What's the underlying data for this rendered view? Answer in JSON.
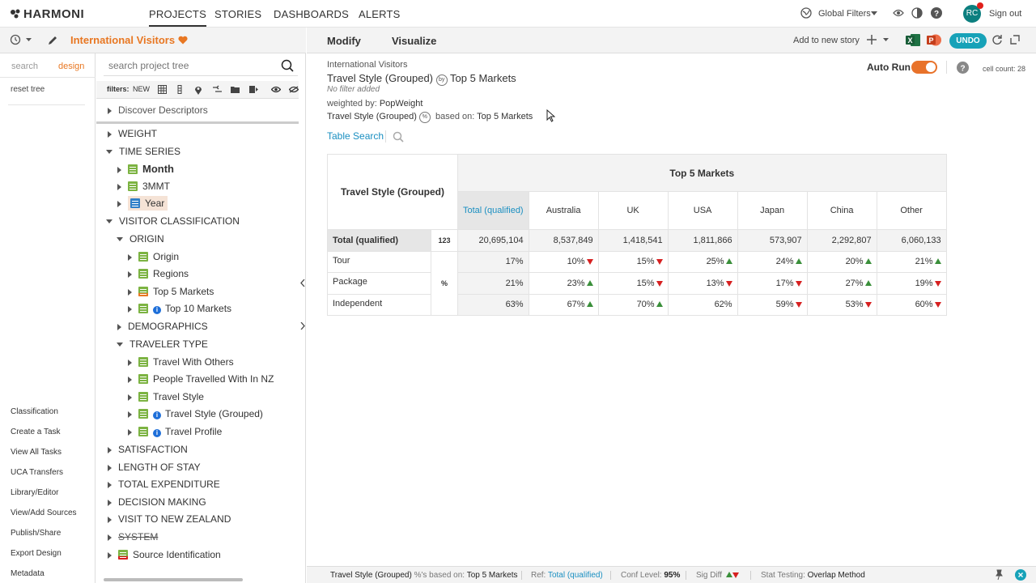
{
  "topnav": {
    "logo": "HARMONI",
    "links": [
      "PROJECTS",
      "STORIES",
      "DASHBOARDS",
      "ALERTS"
    ],
    "global_filters": "Global Filters",
    "avatar": "RC",
    "sign_out": "Sign out"
  },
  "project": {
    "title": "International Visitors"
  },
  "left_tabs": {
    "search": "search",
    "design": "design",
    "reset": "reset tree"
  },
  "side_links": [
    "Classification",
    "Create a Task",
    "View All Tasks",
    "UCA Transfers",
    "Library/Editor",
    "View/Add Sources",
    "Publish/Share",
    "Export Design",
    "Metadata"
  ],
  "tree_search": {
    "placeholder": "search project tree"
  },
  "filters": {
    "label": "filters:",
    "new": "NEW"
  },
  "tree": {
    "discover": "Discover Descriptors",
    "weight": "WEIGHT",
    "time_series": "TIME SERIES",
    "month": "Month",
    "mmt": "3MMT",
    "year": "Year",
    "visitor_classification": "VISITOR CLASSIFICATION",
    "origin_group": "ORIGIN",
    "origin": "Origin",
    "regions": "Regions",
    "top5": "Top 5 Markets",
    "top10": "Top 10 Markets",
    "demographics": "DEMOGRAPHICS",
    "traveler_type": "TRAVELER TYPE",
    "travel_with_others": "Travel With Others",
    "people_travelled": "People Travelled With In NZ",
    "travel_style": "Travel Style",
    "travel_style_grouped": "Travel Style (Grouped)",
    "travel_profile": "Travel Profile",
    "satisfaction": "SATISFACTION",
    "length_of_stay": "LENGTH OF STAY",
    "total_expenditure": "TOTAL EXPENDITURE",
    "decision_making": "DECISION MAKING",
    "visit_nz": "VISIT TO NEW ZEALAND",
    "system": "SYSTEM",
    "source_identification": "Source Identification"
  },
  "main_tabs": {
    "modify": "Modify",
    "visualize": "Visualize",
    "add_story": "Add to new story",
    "undo": "UNDO"
  },
  "report": {
    "project": "International Visitors",
    "row_var": "Travel Style (Grouped)",
    "by": "by",
    "col_var": "Top 5 Markets",
    "no_filter": "No filter added",
    "weighted_label": "weighted by:",
    "weight": "PopWeight",
    "pct_row": "Travel Style (Grouped)",
    "pct_badge": "%",
    "based_on": "based on:",
    "based_var": "Top 5 Markets",
    "table_search": "Table Search",
    "auto_run": "Auto Run",
    "cell_count": "cell count: 28"
  },
  "table": {
    "row_header": "Travel Style (Grouped)",
    "col_group": "Top 5 Markets",
    "columns": [
      "Total (qualified)",
      "Australia",
      "UK",
      "USA",
      "Japan",
      "China",
      "Other"
    ],
    "total_row": {
      "label": "Total (qualified)",
      "unit": "123",
      "values": [
        "20,695,104",
        "8,537,849",
        "1,418,541",
        "1,811,866",
        "573,907",
        "2,292,807",
        "6,060,133"
      ]
    },
    "pct_unit": "%",
    "rows": [
      {
        "label": "Tour",
        "values": [
          "17%",
          "10%",
          "15%",
          "25%",
          "24%",
          "20%",
          "21%"
        ],
        "sig": [
          "",
          "down",
          "down",
          "up",
          "up",
          "up",
          "up"
        ]
      },
      {
        "label": "Package",
        "values": [
          "21%",
          "23%",
          "15%",
          "13%",
          "17%",
          "27%",
          "19%"
        ],
        "sig": [
          "",
          "up",
          "down",
          "down",
          "down",
          "up",
          "down"
        ]
      },
      {
        "label": "Independent",
        "values": [
          "63%",
          "67%",
          "70%",
          "62%",
          "59%",
          "53%",
          "60%"
        ],
        "sig": [
          "",
          "up",
          "up",
          "",
          "down",
          "down",
          "down"
        ]
      }
    ]
  },
  "footer": {
    "pct_var": "Travel Style (Grouped)",
    "pct_text": "%'s based on:",
    "pct_base": "Top 5 Markets",
    "ref_label": "Ref:",
    "ref_value": "Total (qualified)",
    "conf_label": "Conf Level:",
    "conf_value": "95%",
    "sig_label": "Sig Diff",
    "stat_label": "Stat Testing:",
    "stat_value": "Overlap Method"
  },
  "colors": {
    "accent": "#e87722",
    "link": "#1a8fc1",
    "undo": "#17a2b8",
    "up": "#3a8f3a",
    "down": "#d62020"
  }
}
